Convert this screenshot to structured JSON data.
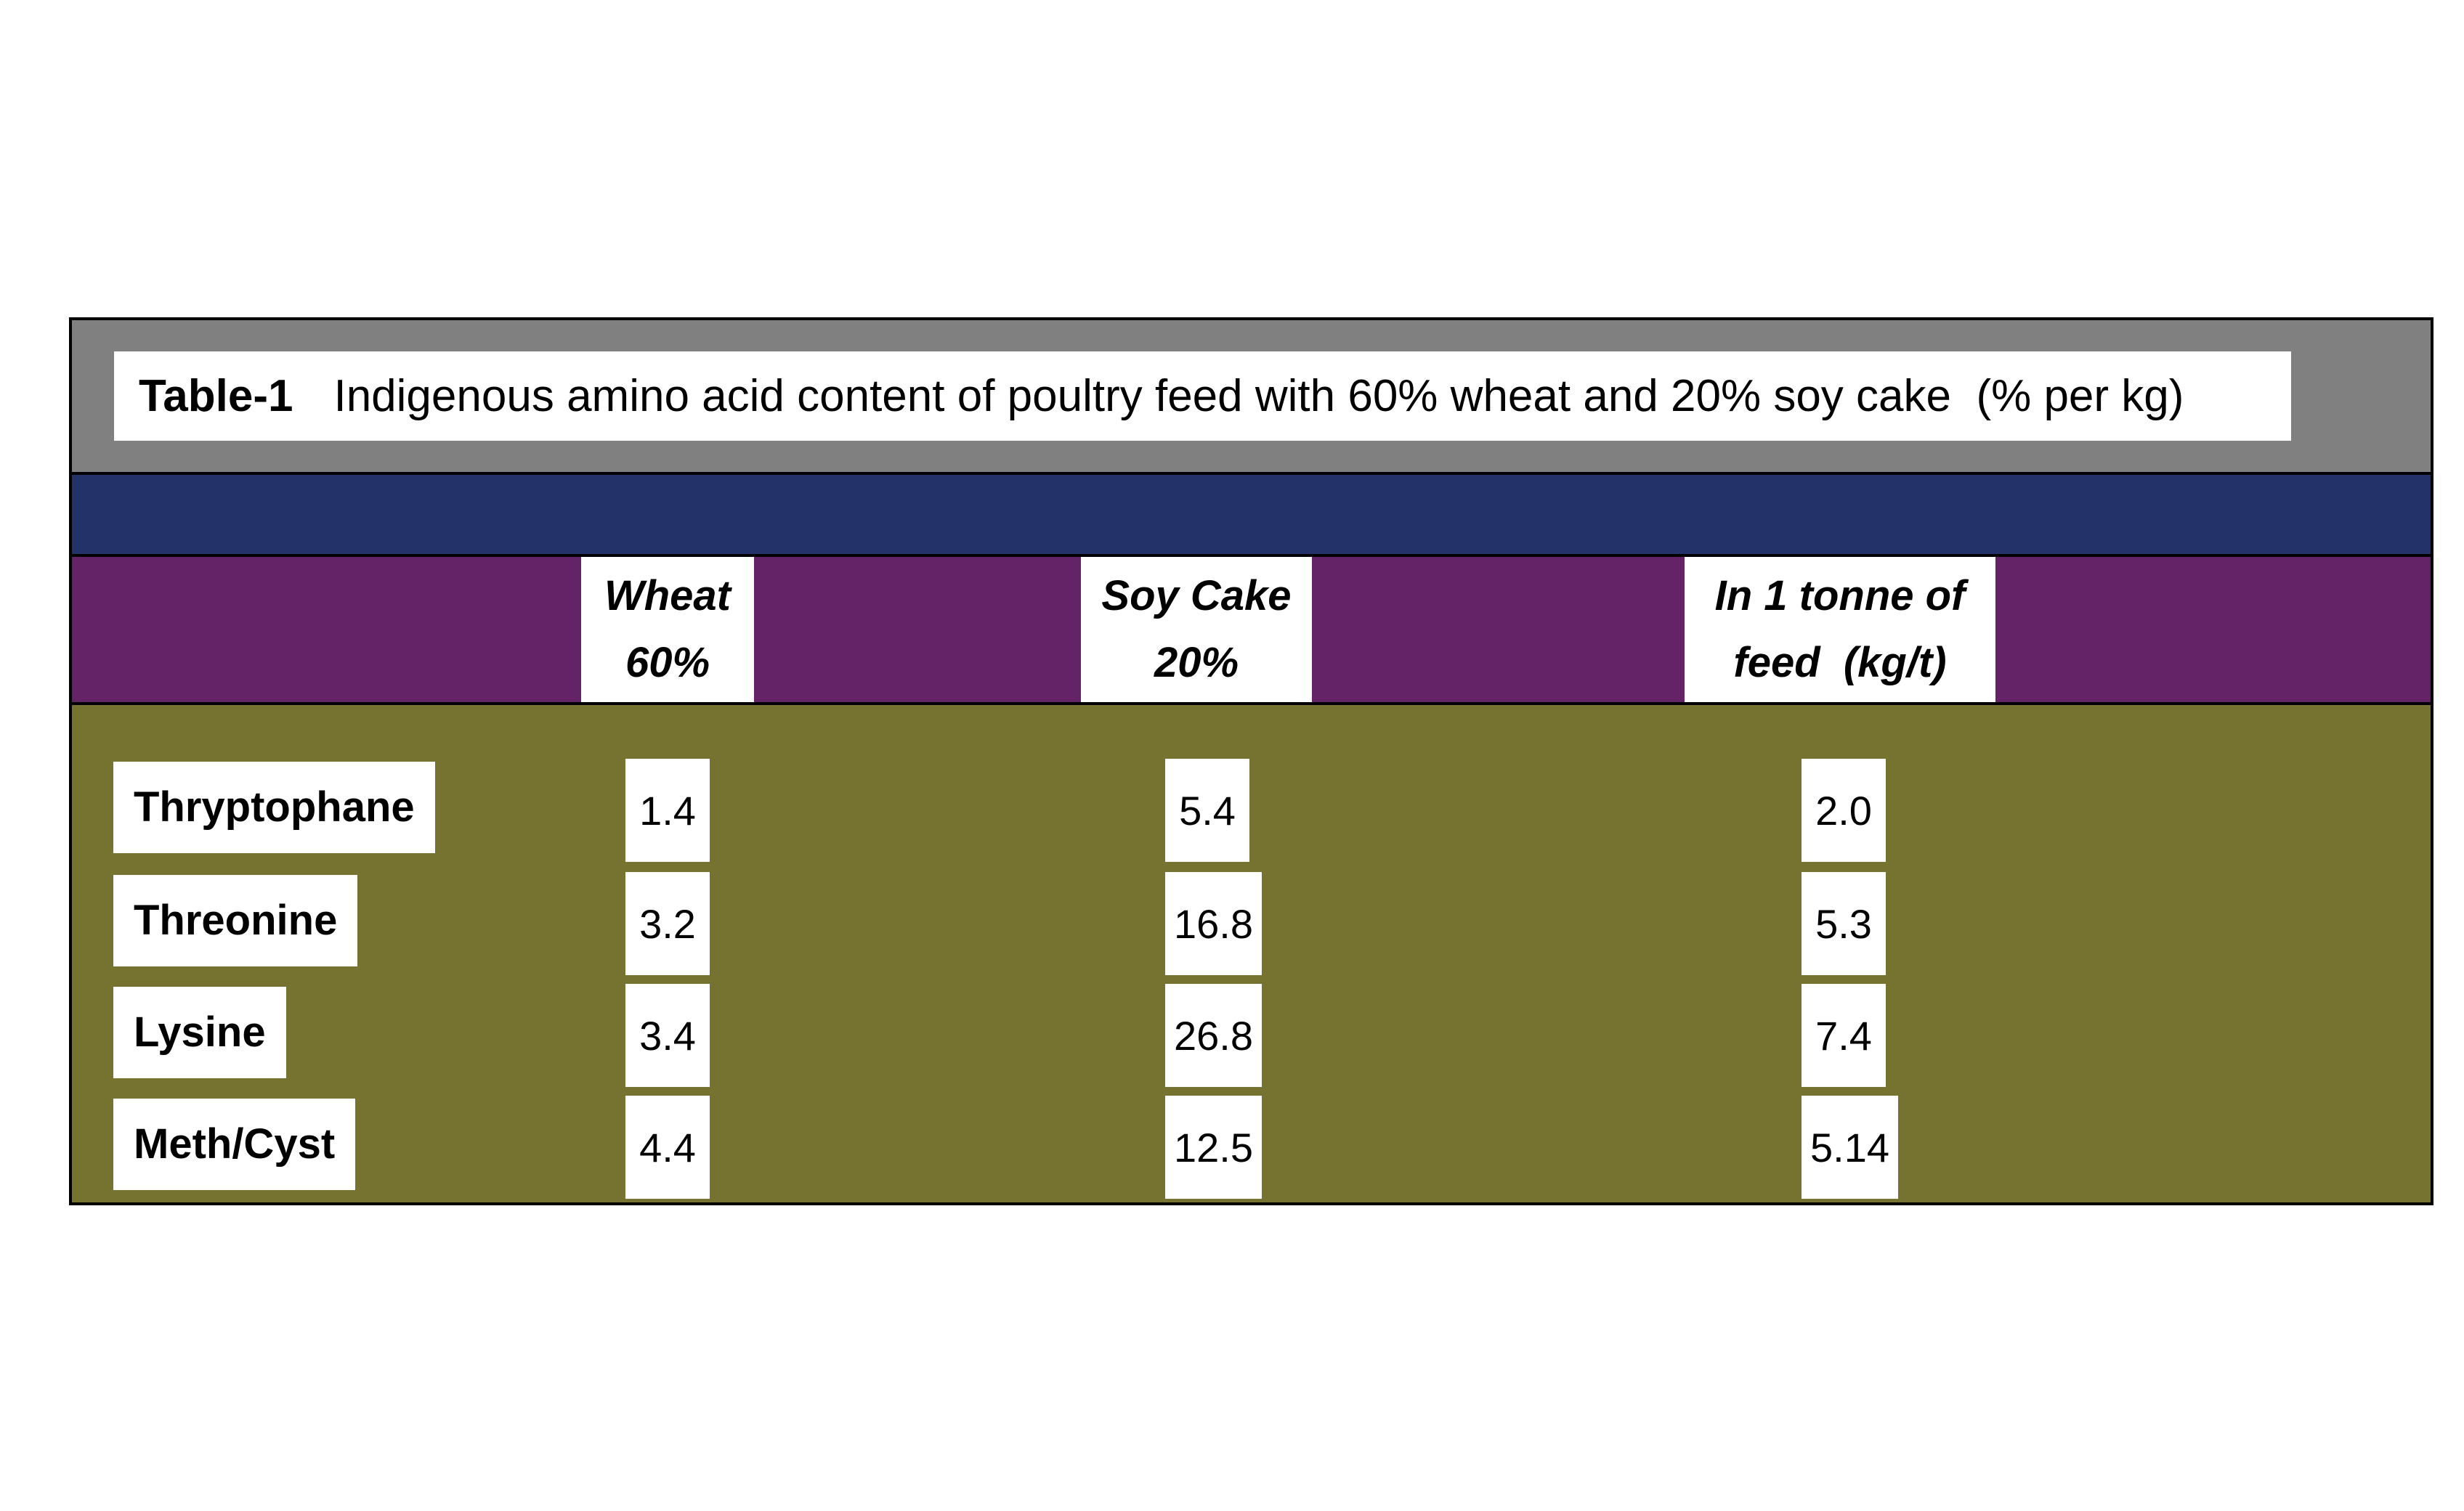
{
  "title_bar": {
    "label": "Table-1",
    "text": "Indigenous amino acid content of poultry feed with 60% wheat and 20% soy cake  (% per kg)"
  },
  "columns": [
    {
      "id": "wheat",
      "line1": "Wheat",
      "line2": "60%"
    },
    {
      "id": "soy_cake",
      "line1": "Soy Cake",
      "line2": "20%"
    },
    {
      "id": "per_tonne",
      "line1": "In 1 tonne of",
      "line2": "feed  (kg/t)"
    }
  ],
  "rows": [
    {
      "label": "Thryptophane",
      "wheat": "1.4",
      "soy_cake": "5.4",
      "per_tonne": "2.0"
    },
    {
      "label": "Threonine",
      "wheat": "3.2",
      "soy_cake": "16.8",
      "per_tonne": "5.3"
    },
    {
      "label": "Lysine",
      "wheat": "3.4",
      "soy_cake": "26.8",
      "per_tonne": "7.4"
    },
    {
      "label": "Meth/Cyst",
      "wheat": "4.4",
      "soy_cake": "12.5",
      "per_tonne": "5.14"
    }
  ],
  "colors": {
    "title_band": "#808080",
    "navy_band": "#233269",
    "header_band": "#632366",
    "body_band": "#76722F",
    "cell_background": "#ffffff",
    "text": "#000000",
    "border": "#000000"
  },
  "chart_data": {
    "type": "table",
    "title": "Table-1  Indigenous amino acid content of poultry feed with 60% wheat and 20% soy cake  (% per kg)",
    "columns": [
      "",
      "Wheat 60%",
      "Soy Cake 20%",
      "In 1 tonne of feed (kg/t)"
    ],
    "rows": [
      [
        "Thryptophane",
        1.4,
        5.4,
        2.0
      ],
      [
        "Threonine",
        3.2,
        16.8,
        5.3
      ],
      [
        "Lysine",
        3.4,
        26.8,
        7.4
      ],
      [
        "Meth/Cyst",
        4.4,
        12.5,
        5.14
      ]
    ]
  }
}
